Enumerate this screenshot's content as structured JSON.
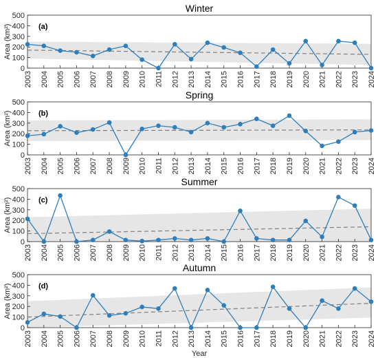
{
  "chart_data": [
    {
      "type": "line",
      "title": "Winter",
      "panel_label": "(a)",
      "ylabel": "Area (km²)",
      "xlabel": "",
      "ylim": [
        0,
        500
      ],
      "yticks": [
        0,
        100,
        200,
        300,
        400,
        500
      ],
      "categories": [
        "2003",
        "2004",
        "2005",
        "2006",
        "2007",
        "2008",
        "2009",
        "2010",
        "2011",
        "2012",
        "2013",
        "2014",
        "2015",
        "2016",
        "2017",
        "2018",
        "2019",
        "2020",
        "2021",
        "2022",
        "2023",
        "2024"
      ],
      "values": [
        225,
        210,
        165,
        150,
        115,
        175,
        210,
        80,
        0,
        225,
        85,
        240,
        195,
        145,
        15,
        175,
        45,
        255,
        30,
        255,
        240,
        0
      ],
      "trend": [
        170,
        130
      ],
      "band_upper": [
        250,
        230
      ],
      "band_lower": [
        90,
        30
      ],
      "colors": {
        "series": "#2e7ebc",
        "trend": "#7f7f7f",
        "band": "#e6e6e6"
      }
    },
    {
      "type": "line",
      "title": "Spring",
      "panel_label": "(b)",
      "ylabel": "Area (km²)",
      "xlabel": "",
      "ylim": [
        0,
        500
      ],
      "yticks": [
        0,
        100,
        200,
        300,
        400,
        500
      ],
      "categories": [
        "2003",
        "2004",
        "2005",
        "2006",
        "2007",
        "2008",
        "2009",
        "2010",
        "2011",
        "2012",
        "2013",
        "2014",
        "2015",
        "2016",
        "2017",
        "2018",
        "2019",
        "2020",
        "2021",
        "2022",
        "2023",
        "2024"
      ],
      "values": [
        180,
        195,
        270,
        210,
        240,
        305,
        0,
        245,
        275,
        260,
        215,
        300,
        260,
        290,
        340,
        275,
        370,
        225,
        85,
        125,
        215,
        230
      ],
      "trend": [
        228,
        236
      ],
      "band_upper": [
        325,
        335
      ],
      "band_lower": [
        130,
        140
      ],
      "colors": {
        "series": "#2e7ebc",
        "trend": "#7f7f7f",
        "band": "#e6e6e6"
      }
    },
    {
      "type": "line",
      "title": "Summer",
      "panel_label": "(c)",
      "ylabel": "Area (km²)",
      "xlabel": "",
      "ylim": [
        0,
        500
      ],
      "yticks": [
        0,
        100,
        200,
        300,
        400,
        500
      ],
      "categories": [
        "2003",
        "2004",
        "2005",
        "2006",
        "2007",
        "2008",
        "2009",
        "2010",
        "2011",
        "2012",
        "2013",
        "2014",
        "2015",
        "2016",
        "2017",
        "2018",
        "2019",
        "2020",
        "2021",
        "2022",
        "2023",
        "2024"
      ],
      "values": [
        215,
        0,
        435,
        0,
        15,
        95,
        15,
        5,
        15,
        30,
        15,
        30,
        0,
        290,
        30,
        15,
        15,
        195,
        45,
        420,
        340,
        15
      ],
      "trend": [
        75,
        140
      ],
      "band_upper": [
        230,
        310
      ],
      "band_lower": [
        0,
        0
      ],
      "colors": {
        "series": "#2e7ebc",
        "trend": "#7f7f7f",
        "band": "#e6e6e6"
      }
    },
    {
      "type": "line",
      "title": "Autumn",
      "panel_label": "(d)",
      "ylabel": "Area (km²)",
      "xlabel": "Year",
      "ylim": [
        0,
        500
      ],
      "yticks": [
        0,
        100,
        200,
        300,
        400,
        500
      ],
      "categories": [
        "2003",
        "2004",
        "2005",
        "2006",
        "2007",
        "2008",
        "2009",
        "2010",
        "2011",
        "2012",
        "2013",
        "2014",
        "2015",
        "2016",
        "2017",
        "2018",
        "2019",
        "2020",
        "2021",
        "2022",
        "2023",
        "2024"
      ],
      "values": [
        50,
        130,
        105,
        0,
        305,
        115,
        135,
        195,
        180,
        370,
        0,
        355,
        210,
        0,
        0,
        385,
        180,
        0,
        255,
        180,
        370,
        245
      ],
      "trend": [
        100,
        230
      ],
      "band_upper": [
        250,
        380
      ],
      "band_lower": [
        0,
        95
      ],
      "colors": {
        "series": "#2e7ebc",
        "trend": "#7f7f7f",
        "band": "#e6e6e6"
      }
    }
  ]
}
